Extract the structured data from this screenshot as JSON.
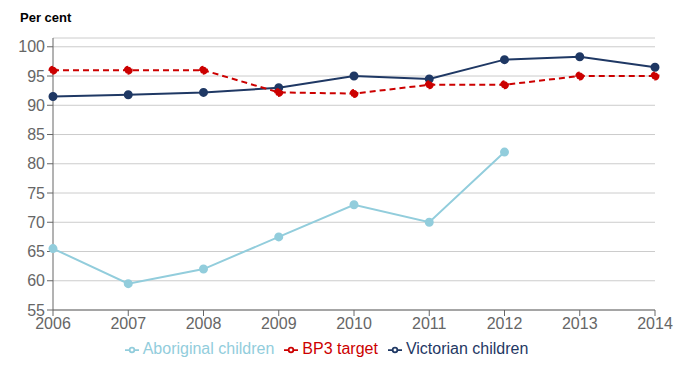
{
  "chart_data": {
    "type": "line",
    "y_label": "Per cent",
    "categories": [
      "2006",
      "2007",
      "2008",
      "2009",
      "2010",
      "2011",
      "2012",
      "2013",
      "2014"
    ],
    "series": [
      {
        "name": "Victorian children",
        "color": "#1F3864",
        "marker": "circle",
        "line_style": "solid",
        "values": [
          91.5,
          91.8,
          92.2,
          93.0,
          95.0,
          94.5,
          97.8,
          98.3,
          96.5
        ]
      },
      {
        "name": "Aboriginal children",
        "color": "#92CDDC",
        "marker": "circle",
        "line_style": "solid",
        "values": [
          65.5,
          59.5,
          62.0,
          67.5,
          73.0,
          70.0,
          82.0,
          null,
          null
        ]
      },
      {
        "name": "BP3 target",
        "color": "#CC0000",
        "marker": "circle",
        "line_style": "dashed",
        "values": [
          96.0,
          96.0,
          96.0,
          92.2,
          92.0,
          93.5,
          93.5,
          95.0,
          95.0
        ]
      }
    ],
    "ylim": [
      55,
      101.5
    ],
    "yticks": [
      55,
      60,
      65,
      70,
      75,
      80,
      85,
      90,
      95,
      100
    ],
    "grid": true,
    "legend": "bottom"
  }
}
